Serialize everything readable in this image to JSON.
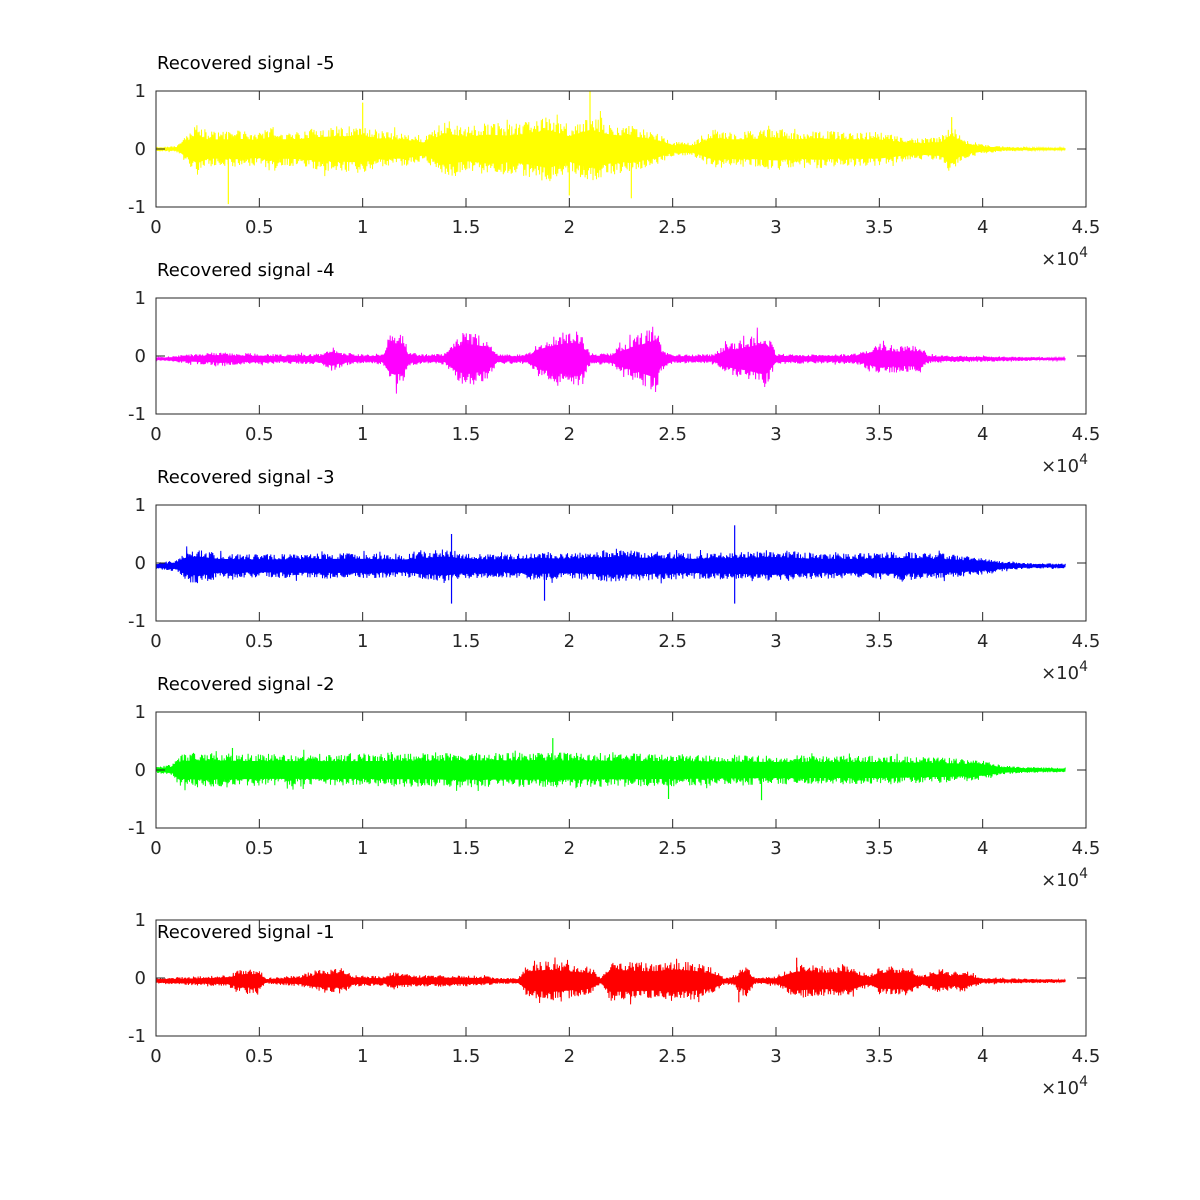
{
  "chart_data": [
    {
      "type": "line",
      "title": "Recovered signal -5",
      "color": "#ffff00",
      "xlim": [
        0,
        45000
      ],
      "ylim": [
        -1,
        1
      ],
      "xticks": [
        "0",
        "0.5",
        "1",
        "1.5",
        "2",
        "2.5",
        "3",
        "3.5",
        "4",
        "4.5"
      ],
      "yticks": [
        "-1",
        "0",
        "1"
      ],
      "x_exponent": {
        "base": "×10",
        "power": "4"
      },
      "baseline": 0,
      "envelope": {
        "x": [
          0,
          1000,
          1500,
          2000,
          2500,
          3500,
          4000,
          5000,
          5500,
          6000,
          7000,
          8000,
          9000,
          10000,
          11000,
          12000,
          13000,
          14000,
          15000,
          16000,
          17000,
          18000,
          19000,
          20000,
          21000,
          22000,
          23000,
          24000,
          25000,
          26000,
          27000,
          28000,
          29000,
          30000,
          31000,
          32000,
          33000,
          34000,
          35000,
          36000,
          37000,
          38000,
          38500,
          39000,
          40000,
          41000,
          42000,
          43000,
          44000
        ],
        "amp": [
          0.04,
          0.05,
          0.25,
          0.45,
          0.3,
          0.3,
          0.32,
          0.28,
          0.38,
          0.3,
          0.32,
          0.38,
          0.4,
          0.42,
          0.3,
          0.3,
          0.2,
          0.5,
          0.38,
          0.45,
          0.42,
          0.48,
          0.6,
          0.4,
          0.6,
          0.45,
          0.4,
          0.32,
          0.12,
          0.12,
          0.34,
          0.3,
          0.32,
          0.36,
          0.3,
          0.34,
          0.3,
          0.3,
          0.3,
          0.22,
          0.18,
          0.22,
          0.45,
          0.18,
          0.08,
          0.04,
          0.03,
          0.02,
          0.02
        ]
      },
      "peaks": [
        {
          "x": 21000,
          "y": 1.0
        },
        {
          "x": 3500,
          "y": -0.95
        },
        {
          "x": 20000,
          "y": -0.8
        },
        {
          "x": 23000,
          "y": -0.85
        },
        {
          "x": 10000,
          "y": 0.8
        },
        {
          "x": 38500,
          "y": 0.55
        }
      ]
    },
    {
      "type": "line",
      "title": "Recovered signal -4",
      "color": "#ff00ff",
      "xlim": [
        0,
        45000
      ],
      "ylim": [
        -1,
        1
      ],
      "xticks": [
        "0",
        "0.5",
        "1",
        "1.5",
        "2",
        "2.5",
        "3",
        "3.5",
        "4",
        "4.5"
      ],
      "yticks": [
        "-1",
        "0",
        "1"
      ],
      "x_exponent": {
        "base": "×10",
        "power": "4"
      },
      "baseline": -0.05,
      "envelope": {
        "x": [
          0,
          1500,
          2500,
          3000,
          4000,
          5000,
          6000,
          8000,
          8500,
          9000,
          10000,
          11000,
          11200,
          11500,
          12000,
          12200,
          13000,
          14000,
          14500,
          15000,
          16000,
          16500,
          17000,
          18000,
          18500,
          19500,
          20000,
          20500,
          21000,
          22000,
          22500,
          23500,
          24200,
          24500,
          25000,
          27000,
          27500,
          28500,
          29500,
          30000,
          31000,
          33000,
          34000,
          35000,
          36000,
          37000,
          37300,
          38000,
          40000,
          44000
        ],
        "amp": [
          0.02,
          0.08,
          0.1,
          0.12,
          0.1,
          0.1,
          0.08,
          0.09,
          0.22,
          0.12,
          0.08,
          0.1,
          0.35,
          0.5,
          0.45,
          0.12,
          0.08,
          0.1,
          0.38,
          0.48,
          0.38,
          0.1,
          0.08,
          0.08,
          0.3,
          0.45,
          0.5,
          0.48,
          0.1,
          0.1,
          0.25,
          0.45,
          0.6,
          0.15,
          0.08,
          0.08,
          0.25,
          0.35,
          0.5,
          0.1,
          0.08,
          0.08,
          0.1,
          0.28,
          0.22,
          0.25,
          0.08,
          0.06,
          0.05,
          0.02
        ]
      }
    },
    {
      "type": "line",
      "title": "Recovered signal -3",
      "color": "#0000ff",
      "xlim": [
        0,
        45000
      ],
      "ylim": [
        -1,
        1
      ],
      "xticks": [
        "0",
        "0.5",
        "1",
        "1.5",
        "2",
        "2.5",
        "3",
        "3.5",
        "4",
        "4.5"
      ],
      "yticks": [
        "-1",
        "0",
        "1"
      ],
      "x_exponent": {
        "base": "×10",
        "power": "4"
      },
      "baseline": -0.05,
      "envelope": {
        "x": [
          0,
          1000,
          1500,
          2000,
          3000,
          5000,
          8000,
          10000,
          12000,
          14000,
          15000,
          17000,
          18500,
          20000,
          22000,
          24000,
          26000,
          28000,
          30000,
          32000,
          34000,
          36000,
          38000,
          40000,
          41000,
          42000,
          44000
        ],
        "amp": [
          0.05,
          0.1,
          0.28,
          0.3,
          0.22,
          0.2,
          0.22,
          0.22,
          0.2,
          0.3,
          0.22,
          0.2,
          0.25,
          0.22,
          0.28,
          0.25,
          0.22,
          0.25,
          0.28,
          0.22,
          0.22,
          0.25,
          0.22,
          0.15,
          0.08,
          0.05,
          0.04
        ]
      },
      "peaks": [
        {
          "x": 14300,
          "y": 0.5
        },
        {
          "x": 14300,
          "y": -0.7
        },
        {
          "x": 28000,
          "y": 0.65
        },
        {
          "x": 28000,
          "y": -0.7
        },
        {
          "x": 18800,
          "y": -0.65
        }
      ]
    },
    {
      "type": "line",
      "title": "Recovered signal -2",
      "color": "#00ff00",
      "xlim": [
        0,
        45000
      ],
      "ylim": [
        -1,
        1
      ],
      "xticks": [
        "0",
        "0.5",
        "1",
        "1.5",
        "2",
        "2.5",
        "3",
        "3.5",
        "4",
        "4.5"
      ],
      "yticks": [
        "-1",
        "0",
        "1"
      ],
      "x_exponent": {
        "base": "×10",
        "power": "4"
      },
      "baseline": 0,
      "envelope": {
        "x": [
          0,
          800,
          1200,
          2000,
          5000,
          10000,
          15000,
          20000,
          25000,
          30000,
          35000,
          38000,
          40000,
          41000,
          42000,
          44000
        ],
        "amp": [
          0.05,
          0.1,
          0.28,
          0.3,
          0.28,
          0.28,
          0.3,
          0.3,
          0.28,
          0.25,
          0.25,
          0.22,
          0.18,
          0.08,
          0.05,
          0.04
        ]
      },
      "peaks": [
        {
          "x": 19200,
          "y": 0.55
        },
        {
          "x": 3700,
          "y": 0.38
        },
        {
          "x": 29300,
          "y": -0.52
        },
        {
          "x": 24800,
          "y": -0.5
        }
      ]
    },
    {
      "type": "line",
      "title": "Recovered signal -1",
      "color": "#ff0000",
      "xlim": [
        0,
        45000
      ],
      "ylim": [
        -1,
        1
      ],
      "xticks": [
        "0",
        "0.5",
        "1",
        "1.5",
        "2",
        "2.5",
        "3",
        "3.5",
        "4",
        "4.5"
      ],
      "yticks": [
        "-1",
        "0",
        "1"
      ],
      "x_exponent": {
        "base": "×10",
        "power": "4"
      },
      "baseline": -0.05,
      "envelope": {
        "x": [
          0,
          2000,
          3500,
          4000,
          5000,
          5300,
          7000,
          8000,
          9000,
          9500,
          11000,
          11500,
          12500,
          15000,
          16000,
          16500,
          17500,
          18000,
          19000,
          20000,
          21000,
          21500,
          22000,
          24000,
          25000,
          26000,
          27000,
          27500,
          28000,
          28500,
          29000,
          30000,
          31000,
          31500,
          33000,
          33500,
          34500,
          35000,
          36500,
          37000,
          38000,
          38500,
          39000,
          40000,
          42000,
          44000
        ],
        "amp": [
          0.05,
          0.08,
          0.1,
          0.2,
          0.22,
          0.05,
          0.1,
          0.2,
          0.22,
          0.1,
          0.08,
          0.15,
          0.1,
          0.1,
          0.08,
          0.05,
          0.05,
          0.3,
          0.35,
          0.3,
          0.25,
          0.05,
          0.35,
          0.3,
          0.35,
          0.32,
          0.22,
          0.05,
          0.1,
          0.3,
          0.05,
          0.08,
          0.3,
          0.28,
          0.25,
          0.28,
          0.1,
          0.25,
          0.25,
          0.1,
          0.22,
          0.15,
          0.2,
          0.05,
          0.04,
          0.03
        ]
      },
      "peaks": [
        {
          "x": 31000,
          "y": 0.35
        },
        {
          "x": 28200,
          "y": -0.42
        }
      ]
    }
  ]
}
